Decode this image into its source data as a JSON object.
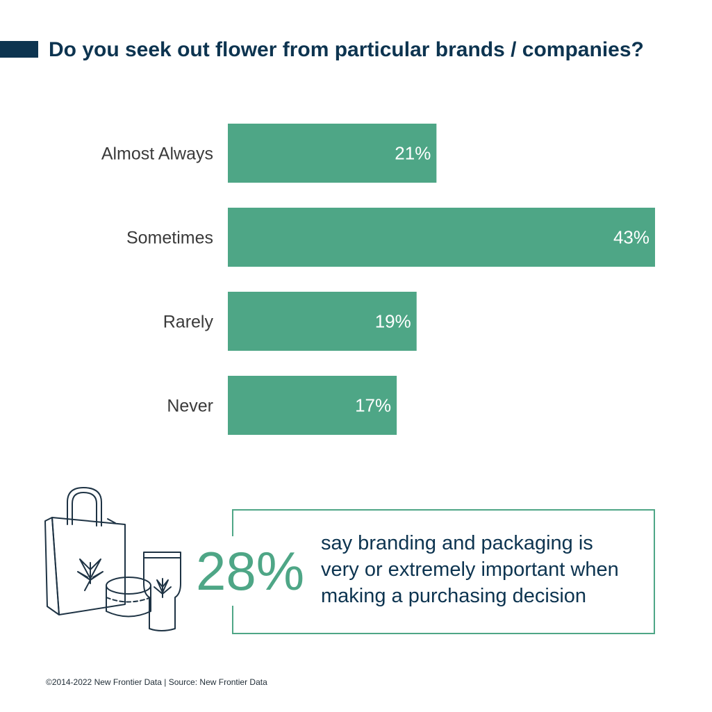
{
  "chart_data": {
    "type": "bar",
    "orientation": "horizontal",
    "title": "Do you seek out flower from particular brands / companies?",
    "categories": [
      "Almost Always",
      "Sometimes",
      "Rarely",
      "Never"
    ],
    "values": [
      21,
      43,
      19,
      17
    ],
    "value_labels": [
      "21%",
      "43%",
      "19%",
      "17%"
    ],
    "xlim": [
      0,
      43
    ],
    "grid": false,
    "legend": "none",
    "colors": {
      "bar": "#4ea686",
      "bar_label": "#ffffff",
      "category_label": "#3a3a3a",
      "title": "#0d3450"
    }
  },
  "callout": {
    "value": "28%",
    "lines": [
      "say branding and packaging is",
      "very or extremely important when",
      "making a purchasing decision"
    ],
    "icon": "shopping-bag-cosmetics-icon"
  },
  "footer": "©2014-2022  New Frontier Data | Source: New Frontier Data"
}
